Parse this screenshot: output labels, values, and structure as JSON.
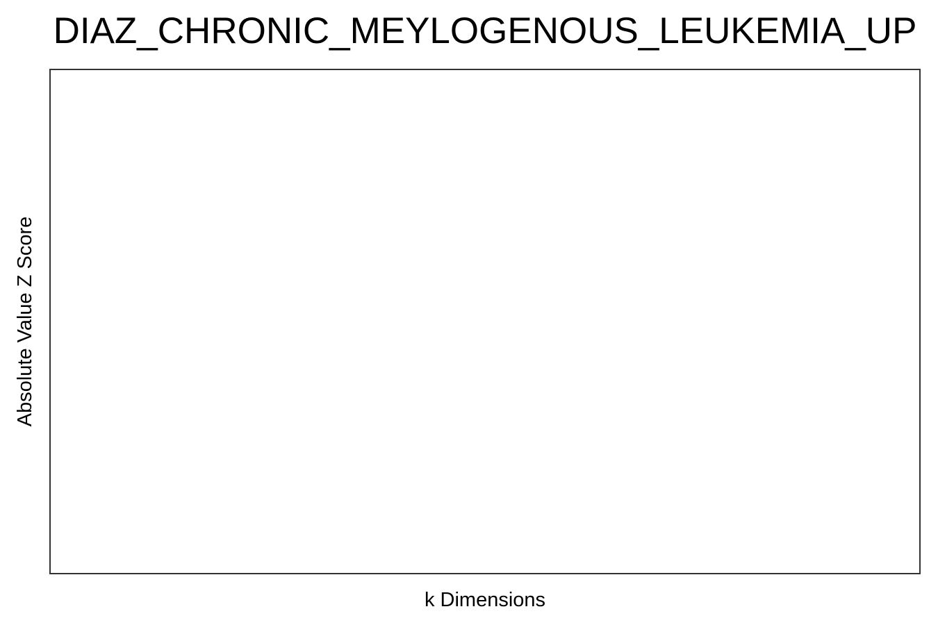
{
  "chart_data": {
    "type": "scatter",
    "title": "DIAZ_CHRONIC_MEYLOGENOUS_LEUKEMIA_UP",
    "xlabel": "k Dimensions",
    "ylabel": "Absolute Value Z Score",
    "series": [],
    "grid": false,
    "legend": "none"
  }
}
